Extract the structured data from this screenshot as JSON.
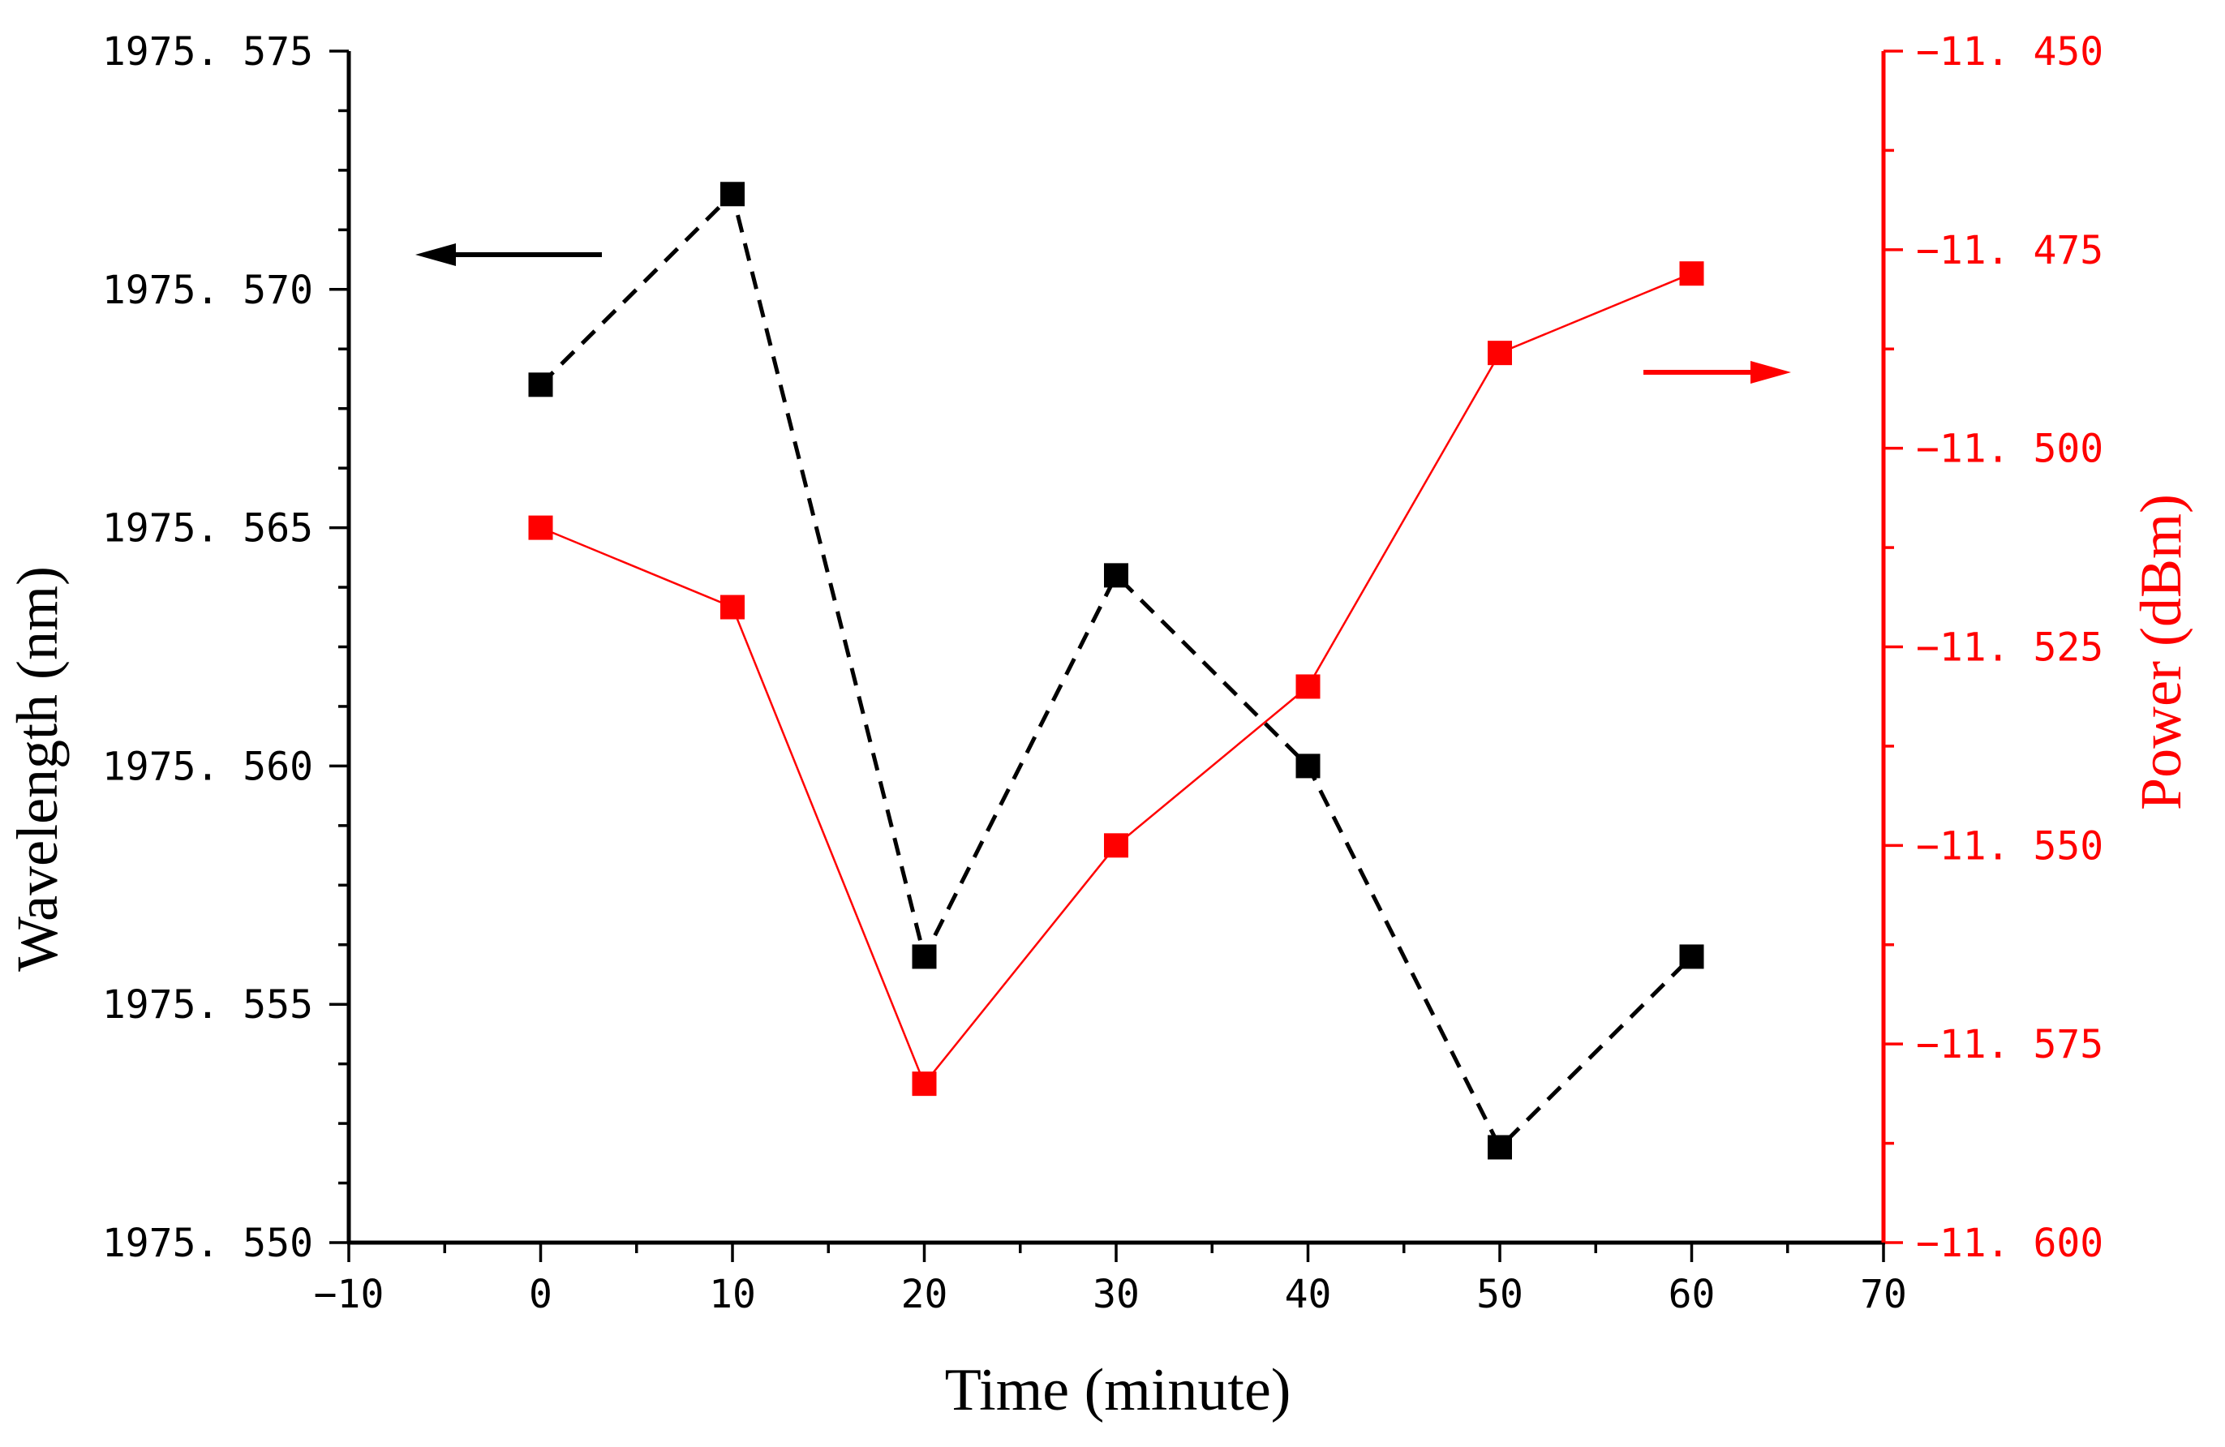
{
  "chart_data": {
    "type": "line",
    "x": [
      0,
      10,
      20,
      30,
      40,
      50,
      60
    ],
    "xlim": [
      -10,
      70
    ],
    "xticks": [
      -10,
      0,
      10,
      20,
      30,
      40,
      50,
      60,
      70
    ],
    "xtick_labels": [
      "−10",
      "0",
      "10",
      "20",
      "30",
      "40",
      "50",
      "60",
      "70"
    ],
    "xlabel": "Time (minute)",
    "left_axis": {
      "label": "Wavelength (nm)",
      "ylim": [
        1975.55,
        1975.575
      ],
      "ticks": [
        1975.55,
        1975.555,
        1975.56,
        1975.565,
        1975.57,
        1975.575
      ],
      "tick_labels": [
        "1975. 550",
        "1975. 555",
        "1975. 560",
        "1975. 565",
        "1975. 570",
        "1975. 575"
      ],
      "color": "#000000"
    },
    "right_axis": {
      "label": "Power (dBm)",
      "ylim": [
        -11.6,
        -11.45
      ],
      "ticks": [
        -11.6,
        -11.575,
        -11.55,
        -11.525,
        -11.5,
        -11.475,
        -11.45
      ],
      "tick_labels": [
        "−11. 600",
        "−11. 575",
        "−11. 550",
        "−11. 525",
        "−11. 500",
        "−11. 475",
        "−11. 450"
      ],
      "color": "#ff0000"
    },
    "series": [
      {
        "name": "Wavelength",
        "axis": "left",
        "values": [
          1975.568,
          1975.572,
          1975.556,
          1975.564,
          1975.56,
          1975.552,
          1975.556
        ],
        "color": "#000000",
        "line_style": "dashed",
        "marker": "square"
      },
      {
        "name": "Power",
        "axis": "right",
        "values": [
          -11.51,
          -11.52,
          -11.58,
          -11.55,
          -11.53,
          -11.488,
          -11.478
        ],
        "color": "#ff0000",
        "line_style": "solid",
        "marker": "square"
      }
    ],
    "annotations": [
      {
        "type": "arrow",
        "direction": "left",
        "series": "Wavelength",
        "color": "#000000"
      },
      {
        "type": "arrow",
        "direction": "right",
        "series": "Power",
        "color": "#ff0000"
      }
    ]
  }
}
